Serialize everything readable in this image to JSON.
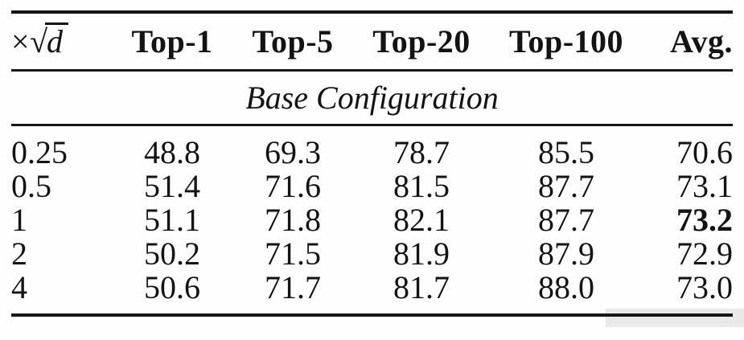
{
  "colors": {
    "text": "#131313",
    "rule": "#161616",
    "artifact_box": "#e9e9e9",
    "background": "#fefefe"
  },
  "table": {
    "scale_header": {
      "times": "×",
      "radical": "√",
      "variable": "d"
    },
    "columns": [
      "Top-1",
      "Top-5",
      "Top-20",
      "Top-100",
      "Avg."
    ],
    "section_label": "Base Configuration",
    "rows": [
      {
        "scale": "0.25",
        "top1": "48.8",
        "top5": "69.3",
        "top20": "78.7",
        "top100": "85.5",
        "avg": "70.6",
        "avg_bold": false
      },
      {
        "scale": "0.5",
        "top1": "51.4",
        "top5": "71.6",
        "top20": "81.5",
        "top100": "87.7",
        "avg": "73.1",
        "avg_bold": false
      },
      {
        "scale": "1",
        "top1": "51.1",
        "top5": "71.8",
        "top20": "82.1",
        "top100": "87.7",
        "avg": "73.2",
        "avg_bold": true
      },
      {
        "scale": "2",
        "top1": "50.2",
        "top5": "71.5",
        "top20": "81.9",
        "top100": "87.9",
        "avg": "72.9",
        "avg_bold": false
      },
      {
        "scale": "4",
        "top1": "50.6",
        "top5": "71.7",
        "top20": "81.7",
        "top100": "88.0",
        "avg": "73.0",
        "avg_bold": false
      }
    ]
  }
}
